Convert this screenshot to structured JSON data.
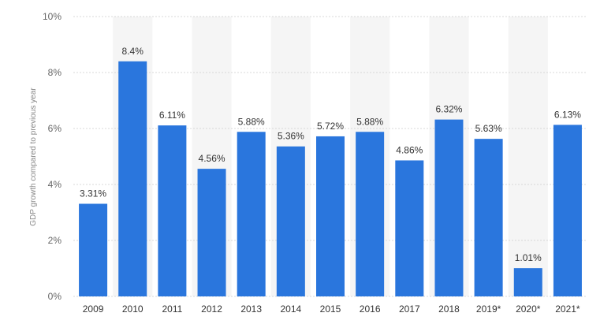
{
  "chart_data": {
    "type": "bar",
    "title": "",
    "xlabel": "",
    "ylabel": "GDP growth compared to previous year",
    "categories": [
      "2009",
      "2010",
      "2011",
      "2012",
      "2013",
      "2014",
      "2015",
      "2016",
      "2017",
      "2018",
      "2019*",
      "2020*",
      "2021*"
    ],
    "values": [
      3.31,
      8.4,
      6.11,
      4.56,
      5.88,
      5.36,
      5.72,
      5.88,
      4.86,
      6.32,
      5.63,
      1.01,
      6.13
    ],
    "value_labels": [
      "3.31%",
      "8.4%",
      "6.11%",
      "4.56%",
      "5.88%",
      "5.36%",
      "5.72%",
      "5.88%",
      "4.86%",
      "6.32%",
      "5.63%",
      "1.01%",
      "6.13%"
    ],
    "ylim": [
      0,
      10
    ],
    "yticks": [
      0,
      2,
      4,
      6,
      8,
      10
    ],
    "ytick_labels": [
      "0%",
      "2%",
      "4%",
      "6%",
      "8%",
      "10%"
    ],
    "grid": true,
    "legend": "none",
    "colors": {
      "bar": "#2a76dd",
      "band": "#f5f5f5",
      "grid": "#d8d8d8"
    }
  }
}
